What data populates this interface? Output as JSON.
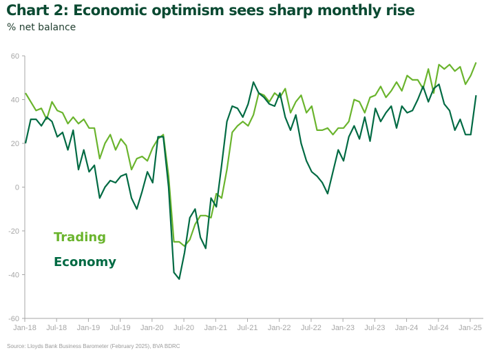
{
  "header": {
    "title": "Chart 2: Economic optimism sees sharp monthly rise",
    "subtitle": "% net balance"
  },
  "footer": {
    "source": "Source: Lloyds Bank Business Barometer (February 2025), BVA BDRC"
  },
  "colors": {
    "trading": "#6ab42d",
    "economy": "#006a43",
    "axis": "#a6a6a6"
  },
  "chart_data": {
    "type": "line",
    "title": "Chart 2: Economic optimism sees sharp monthly rise",
    "ylabel": "% net balance",
    "xlabel": "",
    "ylim": [
      -60,
      60
    ],
    "yticks": [
      "60",
      "40",
      "20",
      "0",
      "-20",
      "-40",
      "-60"
    ],
    "ytick_values": [
      60,
      40,
      20,
      0,
      -20,
      -40,
      -60
    ],
    "xticks": [
      "Jan-18",
      "Jul-18",
      "Jan-19",
      "Jul-19",
      "Jan-20",
      "Jul-20",
      "Jan-21",
      "Jul-21",
      "Jan-22",
      "Jul-22",
      "Jan-23",
      "Jul-23",
      "Jan-24",
      "Jul-24",
      "Jan-25"
    ],
    "xtick_month_index": [
      0,
      6,
      12,
      18,
      24,
      30,
      36,
      42,
      48,
      54,
      60,
      66,
      72,
      78,
      84
    ],
    "x_start": "Jan-18",
    "x_end": "Feb-25",
    "grid": false,
    "legend": [
      "Trading",
      "Economy"
    ],
    "legend_position": "center-left",
    "series": [
      {
        "name": "Trading",
        "values": [
          43,
          39,
          35,
          36,
          31,
          39,
          35,
          34,
          29,
          32,
          29,
          31,
          27,
          27,
          13,
          20,
          24,
          17,
          22,
          19,
          8,
          13,
          14,
          12,
          18,
          22,
          24,
          5,
          -25,
          -25,
          -27,
          -24,
          -17,
          -13,
          -13,
          -14,
          -3,
          -5,
          8,
          25,
          28,
          30,
          28,
          33,
          43,
          42,
          39,
          43,
          41,
          45,
          34,
          39,
          42,
          34,
          37,
          26,
          26,
          27,
          24,
          27,
          27,
          30,
          40,
          39,
          34,
          41,
          42,
          46,
          41,
          44,
          48,
          44,
          51,
          49,
          49,
          45,
          54,
          43,
          56,
          54,
          56,
          53,
          55,
          47,
          51,
          57
        ]
      },
      {
        "name": "Economy",
        "values": [
          20,
          31,
          31,
          28,
          32,
          30,
          23,
          25,
          17,
          26,
          8,
          17,
          7,
          10,
          -5,
          0,
          3,
          2,
          5,
          6,
          -5,
          -10,
          -2,
          7,
          2,
          23,
          23,
          0,
          -39,
          -42,
          -30,
          -14,
          -10,
          -23,
          -28,
          -5,
          -9,
          10,
          30,
          37,
          36,
          32,
          38,
          48,
          43,
          41,
          38,
          37,
          43,
          32,
          26,
          33,
          20,
          12,
          7,
          5,
          2,
          -3,
          7,
          17,
          12,
          23,
          28,
          22,
          32,
          21,
          36,
          30,
          34,
          37,
          27,
          37,
          34,
          35,
          40,
          46,
          39,
          45,
          47,
          38,
          35,
          26,
          31,
          24,
          24,
          42
        ]
      }
    ]
  }
}
